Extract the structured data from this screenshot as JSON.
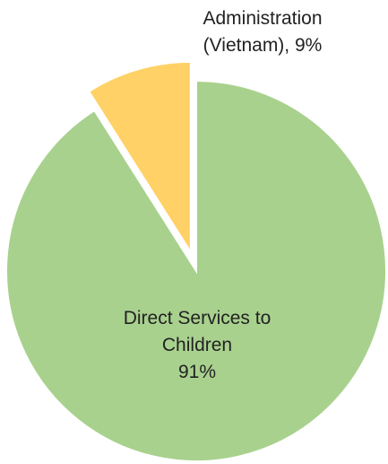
{
  "chart_data": {
    "type": "pie",
    "title": "",
    "slices": [
      {
        "label": "Administration (Vietnam)",
        "value": 9,
        "display": [
          "Administration",
          "(Vietnam), 9%"
        ],
        "color": "#FFD166",
        "exploded": true
      },
      {
        "label": "Direct Services to Children",
        "value": 91,
        "display": [
          "Direct Services to",
          "Children",
          "91%"
        ],
        "color": "#A9D18E",
        "exploded": false
      }
    ],
    "legend": "none"
  }
}
